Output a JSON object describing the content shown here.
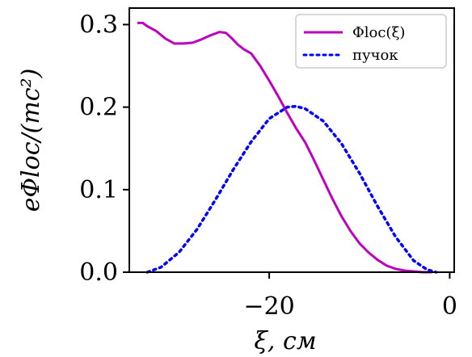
{
  "chart_data": {
    "type": "line",
    "xlabel": "ξ, см",
    "ylabel": "eΦloc/(mc²)",
    "xlim": [
      -35.5,
      0.5
    ],
    "ylim": [
      0,
      0.32
    ],
    "x_ticks": [
      {
        "value": -20,
        "label": "−20"
      },
      {
        "value": 0,
        "label": "0"
      }
    ],
    "y_ticks": [
      {
        "value": 0.0,
        "label": "0.0"
      },
      {
        "value": 0.1,
        "label": "0.1"
      },
      {
        "value": 0.2,
        "label": "0.2"
      },
      {
        "value": 0.3,
        "label": "0.3"
      }
    ],
    "grid": false,
    "legend_position": "top-right",
    "series": [
      {
        "name": "Φloc(ξ)",
        "color": "#bf00bf",
        "style": "solid",
        "x": [
          -34.6,
          -34.0,
          -33.5,
          -32.5,
          -31.5,
          -30.5,
          -29.5,
          -28.5,
          -27.5,
          -26.5,
          -25.5,
          -24.8,
          -24.2,
          -23.5,
          -22.8,
          -22.0,
          -21.0,
          -20.0,
          -19.0,
          -18.0,
          -17.0,
          -16.0,
          -15.0,
          -14.0,
          -13.0,
          -12.0,
          -11.0,
          -10.0,
          -9.0,
          -8.0,
          -7.0,
          -6.0,
          -5.0,
          -4.0,
          -3.0,
          -2.0
        ],
        "y": [
          0.302,
          0.302,
          0.298,
          0.292,
          0.283,
          0.277,
          0.277,
          0.278,
          0.282,
          0.287,
          0.291,
          0.29,
          0.284,
          0.276,
          0.27,
          0.265,
          0.25,
          0.232,
          0.213,
          0.193,
          0.174,
          0.157,
          0.135,
          0.112,
          0.089,
          0.068,
          0.05,
          0.035,
          0.024,
          0.015,
          0.008,
          0.004,
          0.002,
          0.001,
          0.0,
          0.0
        ]
      },
      {
        "name": "пучок",
        "color": "#0000ff",
        "style": "dotted",
        "x": [
          -33.5,
          -32.0,
          -30.0,
          -28.0,
          -26.0,
          -24.0,
          -22.0,
          -20.0,
          -18.0,
          -17.0,
          -16.0,
          -14.0,
          -12.0,
          -10.0,
          -8.0,
          -6.0,
          -4.0,
          -2.5,
          -1.5
        ],
        "y": [
          0.0,
          0.006,
          0.024,
          0.052,
          0.087,
          0.124,
          0.158,
          0.186,
          0.2,
          0.201,
          0.198,
          0.183,
          0.156,
          0.12,
          0.08,
          0.043,
          0.014,
          0.003,
          0.0
        ]
      }
    ],
    "colors": {
      "axis": "#000000",
      "background": "#ffffff",
      "legend_border": "#cccccc"
    }
  }
}
